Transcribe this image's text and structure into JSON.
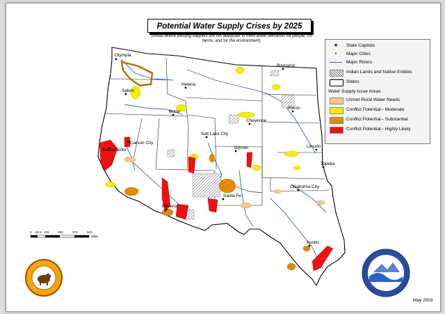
{
  "title": "Potential Water Supply Crises by 2025",
  "subtitle": "(Areas where existing supplies are not adequate to meet water demands for people, for farms, and for the environment)",
  "legend": {
    "symbols": [
      {
        "icon": "star",
        "label": "State Capitols"
      },
      {
        "icon": "dot",
        "label": "Major Cities"
      },
      {
        "icon": "line",
        "label": "Major Rivers"
      },
      {
        "icon": "hatch",
        "label": "Indian Lands and Native Entities"
      },
      {
        "icon": "box",
        "label": "States"
      }
    ],
    "issue_heading": "Water Supply Issue Areas",
    "issues": [
      {
        "label": "Unmet Rural Water Needs",
        "color": "#f6c88a"
      },
      {
        "label": "Conflict Potential-- Moderate",
        "color": "#f2ee00"
      },
      {
        "label": "Conflict Potential-- Substantial",
        "color": "#e38a00"
      },
      {
        "label": "Conflict Potential-- Highly Likely",
        "color": "#ee1111"
      }
    ]
  },
  "cities": [
    "Olympia",
    "Salem",
    "Helena",
    "Boise",
    "Bismarck",
    "Pierre",
    "Cheyenne",
    "Carson City",
    "Sacramento",
    "Salt Lake City",
    "Denver",
    "Lincoln",
    "Topeka",
    "Oklahoma City",
    "Santa Fe",
    "Phoenix",
    "Austin"
  ],
  "scale": {
    "ticks": [
      "0",
      "62.5",
      "125",
      "250",
      "375",
      "500"
    ],
    "unit": "Miles"
  },
  "date": "May 2003",
  "seals": {
    "left": "U.S. Department of the Interior",
    "right": "U.S. Department of the Interior — Bureau of Reclamation"
  }
}
